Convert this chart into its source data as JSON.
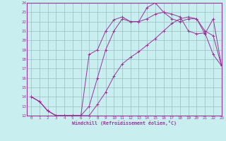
{
  "xlabel": "Windchill (Refroidissement éolien,°C)",
  "bg_color": "#c8eef0",
  "line_color": "#993399",
  "grid_color": "#9bbcbe",
  "ylim": [
    12,
    24
  ],
  "xlim": [
    -0.5,
    23
  ],
  "yticks": [
    12,
    13,
    14,
    15,
    16,
    17,
    18,
    19,
    20,
    21,
    22,
    23,
    24
  ],
  "xticks": [
    0,
    1,
    2,
    3,
    4,
    5,
    6,
    7,
    8,
    9,
    10,
    11,
    12,
    13,
    14,
    15,
    16,
    17,
    18,
    19,
    20,
    21,
    22,
    23
  ],
  "line1_x": [
    0,
    1,
    2,
    3,
    4,
    5,
    6,
    7,
    8,
    9,
    10,
    11,
    12,
    13,
    14,
    15,
    16,
    17,
    18,
    19,
    20,
    21,
    22,
    23
  ],
  "line1_y": [
    14,
    13.5,
    12.5,
    12.0,
    12.0,
    12.0,
    12.0,
    12.0,
    13.2,
    14.5,
    16.2,
    17.5,
    18.2,
    18.8,
    19.5,
    20.2,
    21.0,
    21.8,
    22.3,
    22.5,
    22.3,
    21.0,
    20.5,
    17.3
  ],
  "line2_x": [
    0,
    1,
    2,
    3,
    4,
    5,
    6,
    7,
    8,
    9,
    10,
    11,
    12,
    13,
    14,
    15,
    16,
    17,
    18,
    19,
    20,
    21,
    22,
    23
  ],
  "line2_y": [
    14,
    13.5,
    12.5,
    12.0,
    12.0,
    12.0,
    12.0,
    18.5,
    19.0,
    21.0,
    22.2,
    22.5,
    22.0,
    22.0,
    23.5,
    24.0,
    23.0,
    22.8,
    22.5,
    21.0,
    20.7,
    20.8,
    18.5,
    17.3
  ],
  "line3_x": [
    0,
    1,
    2,
    3,
    4,
    5,
    6,
    7,
    8,
    9,
    10,
    11,
    12,
    13,
    14,
    15,
    16,
    17,
    18,
    19,
    20,
    21,
    22,
    23
  ],
  "line3_y": [
    14,
    13.5,
    12.5,
    12.0,
    12.0,
    12.0,
    12.0,
    13.0,
    16.0,
    19.0,
    21.0,
    22.3,
    22.0,
    22.0,
    22.3,
    22.8,
    23.0,
    22.3,
    22.0,
    22.3,
    22.3,
    20.7,
    22.3,
    17.3
  ]
}
